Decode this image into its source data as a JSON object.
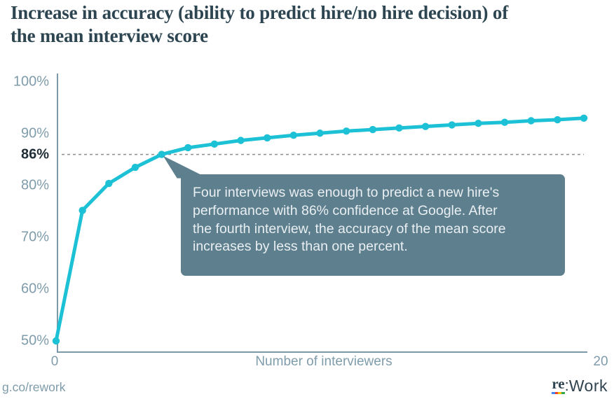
{
  "title": {
    "line1": "Increase in accuracy (ability to predict hire/no hire decision) of",
    "line2": "the mean interview score"
  },
  "chart_data": {
    "type": "line",
    "series_name": "Accuracy of mean interview score",
    "x": [
      0,
      1,
      2,
      3,
      4,
      5,
      6,
      7,
      8,
      9,
      10,
      11,
      12,
      13,
      14,
      15,
      16,
      17,
      18,
      19,
      20
    ],
    "values": [
      50,
      75.2,
      80.4,
      83.5,
      86,
      87.3,
      88,
      88.7,
      89.2,
      89.7,
      90.1,
      90.5,
      90.8,
      91.1,
      91.4,
      91.7,
      92,
      92.2,
      92.5,
      92.7,
      93
    ],
    "xlabel": "Number of interviewers",
    "ylabel": "",
    "xlim": [
      0,
      20
    ],
    "ylim": [
      50,
      100
    ],
    "grid": false,
    "legend": "none",
    "yticks": [
      {
        "label": "100%",
        "value": 100,
        "emphasis": false
      },
      {
        "label": "90%",
        "value": 90,
        "emphasis": false
      },
      {
        "label": "86%",
        "value": 86,
        "emphasis": true
      },
      {
        "label": "80%",
        "value": 80,
        "emphasis": false
      },
      {
        "label": "70%",
        "value": 70,
        "emphasis": false
      },
      {
        "label": "60%",
        "value": 60,
        "emphasis": false
      },
      {
        "label": "50%",
        "value": 50,
        "emphasis": false
      }
    ],
    "xticks": [
      {
        "label": "0",
        "value": 0
      },
      {
        "label": "20",
        "value": 20
      }
    ],
    "line_color": "#1dc1d6",
    "axis_color": "#7b99a7",
    "reference_line": {
      "value": 86,
      "style": "dashed",
      "color": "#8e8e8e"
    }
  },
  "annotation": {
    "lines": [
      "Four interviews was enough to predict a new hire's",
      "performance with 86% confidence at Google. After",
      "the fourth interview, the accuracy of the mean score",
      "increases by less than one percent."
    ],
    "anchor_x": 4,
    "anchor_y": 86,
    "bg_color": "#5e7f8e",
    "text_color": "#e9eff2"
  },
  "footer": {
    "link": "g.co/rework",
    "logo": {
      "re": "re",
      "colon": ":",
      "work": "Work",
      "underline_colors": [
        "#4285f4",
        "#ea4335",
        "#fbbc05",
        "#34a853"
      ]
    }
  }
}
